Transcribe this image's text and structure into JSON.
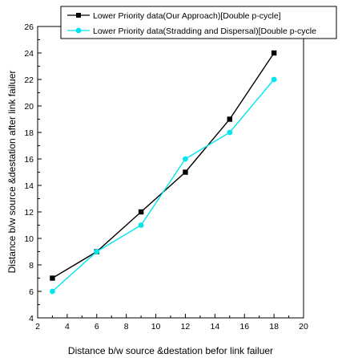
{
  "chart_data": {
    "type": "line",
    "title": "",
    "xlabel": "Distance b/w source &destation befor link failuer",
    "ylabel": "Distance b/w source &destation after link failuer",
    "xlim": [
      2,
      20
    ],
    "ylim": [
      4,
      26
    ],
    "xticks": [
      2,
      4,
      6,
      8,
      10,
      12,
      14,
      16,
      18,
      20
    ],
    "yticks": [
      4,
      6,
      8,
      10,
      12,
      14,
      16,
      18,
      20,
      22,
      24,
      26
    ],
    "x": [
      3,
      6,
      9,
      12,
      15,
      18
    ],
    "series": [
      {
        "name": "Lower Priority data(Our Approach)[Double p-cycle]",
        "values": [
          7,
          9,
          12,
          15,
          19,
          24
        ],
        "color": "#000000",
        "marker": "square"
      },
      {
        "name": "Lower Priority data(Stradding and Dispersal)[Double p-cycle",
        "values": [
          6,
          9,
          11,
          16,
          18,
          22
        ],
        "color": "#00e5ee",
        "marker": "circle"
      }
    ],
    "legend_position": "top-right",
    "grid": false
  }
}
